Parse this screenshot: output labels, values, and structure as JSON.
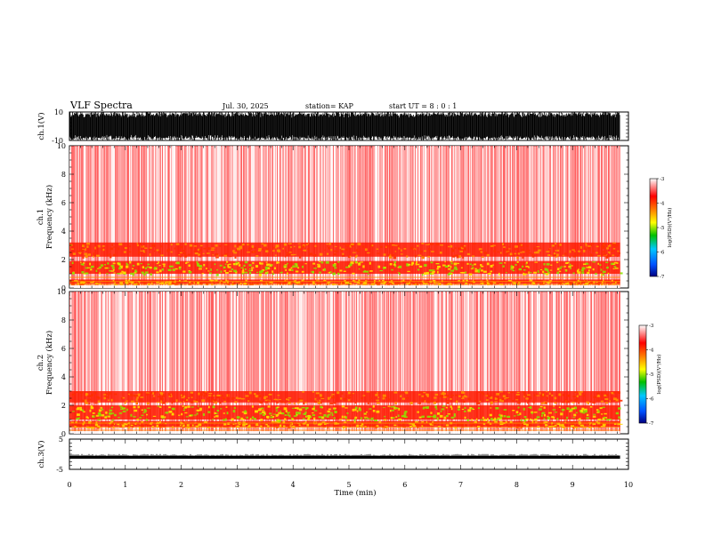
{
  "header": {
    "title": "VLF Spectra",
    "date": "Jul. 30, 2025",
    "station": "station= KAP",
    "start": "start UT =  8 : 0 : 1"
  },
  "chart_data": {
    "type": "heatmap",
    "x_axis": {
      "label": "Time (min)",
      "range": [
        0,
        10
      ],
      "ticks": [
        "0",
        "1",
        "2",
        "3",
        "4",
        "5",
        "6",
        "7",
        "8",
        "9",
        "10"
      ]
    },
    "panels": [
      {
        "id": "ch1-waveform",
        "type": "line",
        "ylabel": "ch.1(V)",
        "ylim": [
          -10,
          10
        ],
        "yticks": [
          "10",
          "-10"
        ],
        "data_x_range": [
          0,
          9.85
        ],
        "description_amplitude": [
          -8,
          8
        ]
      },
      {
        "id": "ch1-spectrogram",
        "type": "heatmap",
        "ylabel_line1": "ch.1",
        "ylabel_line2": "Frequency (kHz)",
        "ylim": [
          0,
          10
        ],
        "yticks": [
          "0",
          "2",
          "4",
          "6",
          "8",
          "10"
        ],
        "data_x_range": [
          0,
          9.85
        ],
        "enhanced_bands_khz": [
          [
            0.3,
            0.6
          ],
          [
            1.0,
            1.9
          ],
          [
            2.2,
            3.2
          ]
        ]
      },
      {
        "id": "ch2-spectrogram",
        "type": "heatmap",
        "ylabel_line1": "ch.2",
        "ylabel_line2": "Frequency (kHz)",
        "ylim": [
          0,
          10
        ],
        "yticks": [
          "0",
          "2",
          "4",
          "6",
          "8",
          "10"
        ],
        "data_x_range": [
          0,
          9.85
        ],
        "enhanced_bands_khz": [
          [
            0.5,
            0.9
          ],
          [
            1.0,
            2.0
          ],
          [
            2.2,
            3.0
          ]
        ]
      },
      {
        "id": "ch3-waveform",
        "type": "line",
        "ylabel": "ch.3(V)",
        "ylim": [
          -5,
          5
        ],
        "yticks": [
          "5",
          "-5"
        ],
        "data_x_range": [
          0,
          9.85
        ],
        "level": -1,
        "description_amplitude": [
          -1.5,
          -0.5
        ]
      }
    ],
    "colorbar": {
      "label": "log(PSD)(V²/Hz)",
      "range": [
        -7,
        -3
      ],
      "ticks": [
        "-3",
        "-4",
        "-5",
        "-6",
        "-7"
      ],
      "stops": [
        "#000080",
        "#0050ff",
        "#00c8ff",
        "#00c000",
        "#ffff00",
        "#ff8000",
        "#ff0000",
        "#ffffff"
      ]
    }
  }
}
